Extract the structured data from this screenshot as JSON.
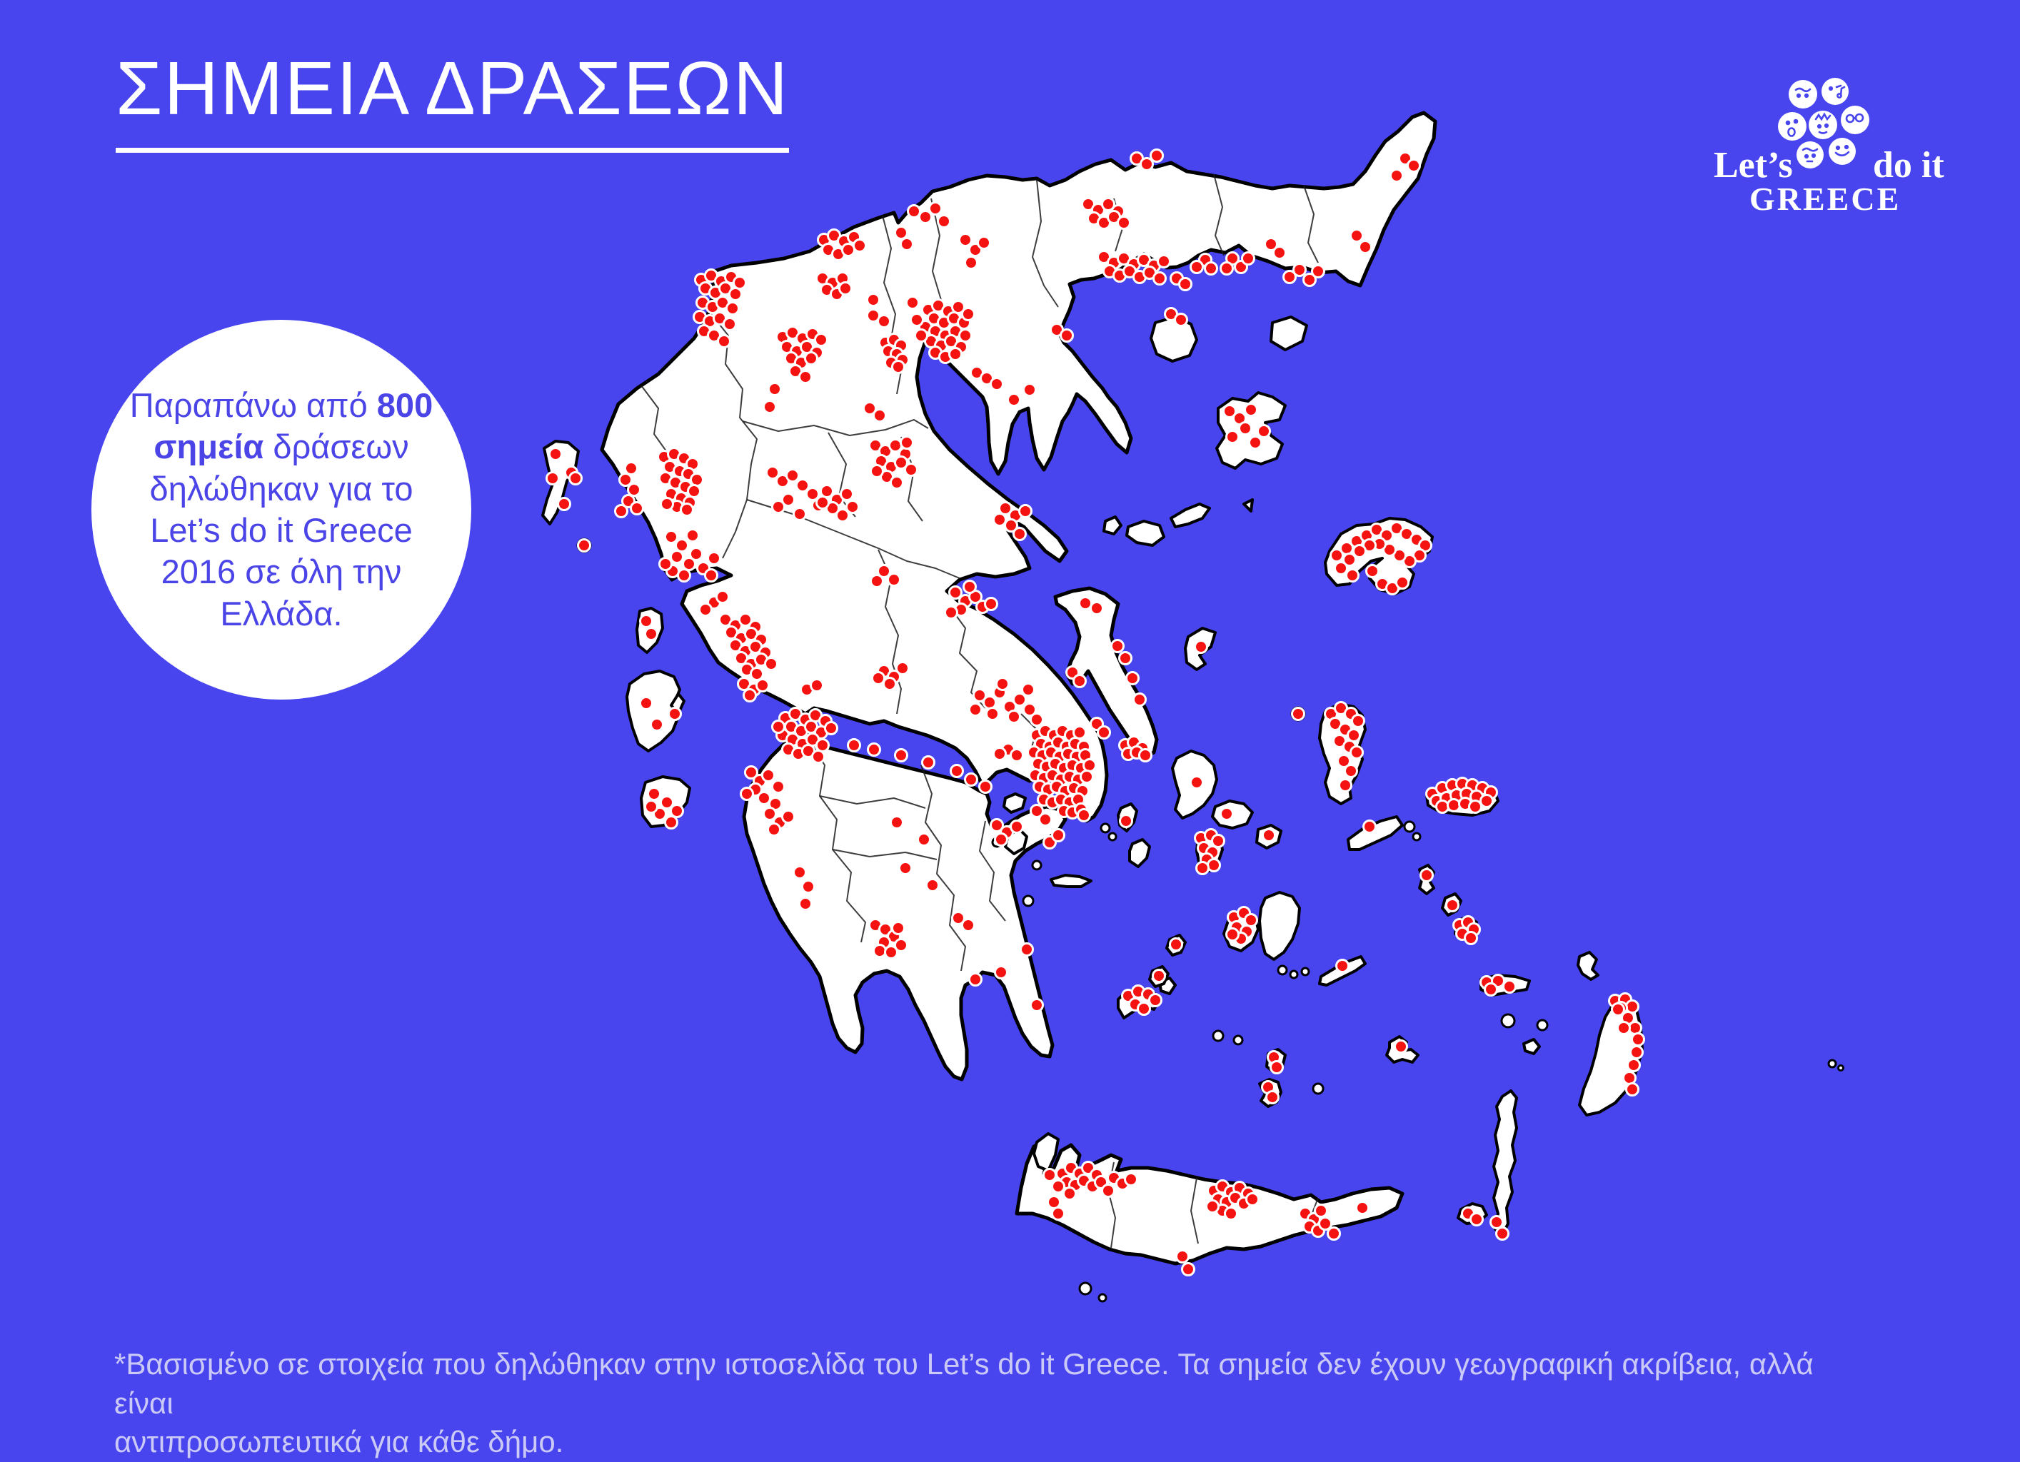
{
  "title": {
    "text": "ΣΗΜΕΙΑ ΔΡΑΣΕΩΝ"
  },
  "info_circle": {
    "prefix": "Παραπάνω από ",
    "highlight": "800 σημεία",
    "suffix": " δράσεων δηλώθηκαν για το Let’s do it Greece 2016 σε όλη την Ελλάδα."
  },
  "logo": {
    "left_word": "Let’s",
    "right_word": "do it",
    "bottom_word": "GREECE",
    "icon": "smiley-faces-cluster-icon"
  },
  "footnote": {
    "line1": "*Βασισμένο σε στοιχεία που δηλώθηκαν στην ιστοσελίδα του Let’s do it Greece. Τα σημεία δεν έχουν γεωγραφική ακρίβεια, αλλά είναι",
    "line2": "αντιπροσωπευτικά για κάθε δήμο."
  },
  "colors": {
    "background": "#4845EF",
    "land": "#FFFFFF",
    "outline": "#000000",
    "dot": "#F41311",
    "dot_halo": "#FFFFFF",
    "title_text": "#FFFFFF",
    "circle_text": "#4B45E8",
    "footnote_text": "#CBC9F6"
  },
  "map": {
    "dot_radius": 8.5,
    "dot_color": "#F41311",
    "dots": [
      1968,
      222,
      1980,
      232,
      1956,
      246,
      1900,
      330,
      1912,
      346,
      1806,
      388,
      1820,
      378,
      1834,
      392,
      1846,
      380,
      1780,
      342,
      1792,
      354,
      1726,
      362,
      1738,
      374,
      1748,
      362,
      1718,
      376,
      1688,
      364,
      1696,
      376,
      1676,
      374,
      1648,
      390,
      1660,
      398,
      1640,
      440,
      1654,
      448,
      1592,
      222,
      1606,
      230,
      1620,
      218,
      1524,
      286,
      1538,
      294,
      1552,
      286,
      1566,
      296,
      1532,
      306,
      1546,
      312,
      1560,
      304,
      1574,
      312,
      1546,
      360,
      1560,
      368,
      1574,
      362,
      1588,
      370,
      1602,
      364,
      1616,
      372,
      1630,
      366,
      1554,
      380,
      1568,
      386,
      1582,
      380,
      1596,
      388,
      1610,
      382,
      1624,
      390,
      1280,
      296,
      1296,
      304,
      1310,
      292,
      1322,
      310,
      1352,
      336,
      1366,
      350,
      1378,
      340,
      1360,
      368,
      1262,
      326,
      1270,
      342,
      1300,
      434,
      1314,
      428,
      1328,
      436,
      1342,
      430,
      1308,
      446,
      1322,
      452,
      1336,
      446,
      1350,
      452,
      1296,
      458,
      1310,
      464,
      1324,
      470,
      1338,
      464,
      1352,
      470,
      1304,
      478,
      1318,
      484,
      1332,
      478,
      1346,
      486,
      1310,
      494,
      1324,
      500,
      1338,
      496,
      1290,
      470,
      1356,
      440,
      1284,
      448,
      1278,
      424,
      1480,
      462,
      1494,
      470,
      1368,
      522,
      1382,
      530,
      1396,
      538,
      1442,
      546,
      1420,
      560,
      1154,
      336,
      1168,
      330,
      1182,
      338,
      1196,
      332,
      1204,
      344,
      1160,
      350,
      1174,
      356,
      1188,
      350,
      1152,
      390,
      1166,
      396,
      1180,
      390,
      1158,
      406,
      1172,
      412,
      1184,
      404,
      1223,
      420,
      1223,
      442,
      1238,
      450,
      1240,
      480,
      1252,
      476,
      1262,
      484,
      1244,
      492,
      1256,
      496,
      1264,
      504,
      1248,
      508,
      1258,
      514,
      982,
      392,
      996,
      386,
      1010,
      394,
      1024,
      388,
      1036,
      396,
      988,
      404,
      1002,
      410,
      1016,
      404,
      1030,
      412,
      984,
      424,
      998,
      430,
      1012,
      424,
      1026,
      432,
      980,
      444,
      994,
      450,
      1008,
      446,
      1022,
      454,
      986,
      464,
      1000,
      470,
      1014,
      478,
      1096,
      472,
      1110,
      466,
      1124,
      474,
      1138,
      468,
      1150,
      476,
      1102,
      486,
      1116,
      492,
      1130,
      486,
      1144,
      494,
      1108,
      502,
      1122,
      508,
      1136,
      502,
      1114,
      520,
      1128,
      528,
      1085,
      545,
      1078,
      570,
      930,
      640,
      944,
      636,
      958,
      642,
      970,
      650,
      938,
      654,
      952,
      660,
      964,
      664,
      976,
      672,
      932,
      670,
      946,
      676,
      960,
      682,
      972,
      688,
      940,
      692,
      954,
      698,
      966,
      704,
      948,
      710,
      934,
      706,
      962,
      714,
      876,
      672,
      888,
      686,
      880,
      702,
      892,
      712,
      870,
      716,
      884,
      656,
      778,
      636,
      800,
      662,
      806,
      670,
      774,
      670,
      790,
      706,
      818,
      764,
      905,
      870,
      912,
      888,
      905,
      985,
      920,
      1015,
      945,
      1000,
      916,
      1112,
      934,
      1124,
      948,
      1136,
      924,
      1140,
      940,
      1152,
      912,
      1130,
      940,
      752,
      955,
      764,
      948,
      780,
      965,
      790,
      975,
      776,
      942,
      800,
      958,
      806,
      985,
      796,
      996,
      806,
      1000,
      782,
      932,
      790,
      970,
      750,
      1082,
      662,
      1096,
      674,
      1110,
      666,
      1124,
      680,
      1138,
      692,
      1104,
      700,
      1090,
      710,
      1146,
      708,
      1120,
      720,
      1226,
      624,
      1240,
      632,
      1254,
      624,
      1268,
      636,
      1234,
      646,
      1248,
      654,
      1262,
      648,
      1276,
      658,
      1242,
      668,
      1256,
      676,
      1228,
      660,
      1270,
      620,
      1218,
      572,
      1232,
      582,
      1158,
      688,
      1172,
      700,
      1186,
      692,
      1166,
      712,
      1180,
      722,
      1152,
      704,
      1194,
      710,
      1408,
      712,
      1422,
      722,
      1436,
      716,
      1416,
      736,
      1400,
      728,
      1428,
      748,
      1338,
      830,
      1352,
      842,
      1366,
      836,
      1346,
      854,
      1376,
      850,
      1332,
      858,
      1388,
      846,
      1358,
      822,
      1238,
      800,
      1252,
      812,
      1228,
      814,
      1016,
      868,
      1030,
      876,
      1044,
      868,
      1058,
      878,
      1024,
      886,
      1038,
      894,
      1052,
      888,
      1066,
      896,
      1030,
      904,
      1044,
      912,
      1058,
      906,
      1072,
      914,
      1038,
      922,
      1052,
      930,
      1066,
      924,
      1080,
      930,
      1046,
      938,
      1060,
      944,
      1042,
      958,
      1056,
      966,
      1068,
      960,
      1050,
      974,
      1000,
      844,
      1012,
      836,
      988,
      854,
      1130,
      966,
      1144,
      960,
      1238,
      940,
      1252,
      948,
      1264,
      936,
      1246,
      958,
      1230,
      950,
      1372,
      974,
      1386,
      984,
      1400,
      970,
      1414,
      990,
      1428,
      980,
      1442,
      994,
      1390,
      1000,
      1420,
      1004,
      1440,
      966,
      1366,
      994,
      1452,
      1008,
      1404,
      958,
      1520,
      845,
      1536,
      852,
      1502,
      942,
      1512,
      954,
      1565,
      905,
      1576,
      922,
      1596,
      980,
      1586,
      950,
      1576,
      1044,
      1588,
      1040,
      1600,
      1048,
      1580,
      1056,
      1592,
      1054,
      1604,
      1058,
      1682,
      906,
      1452,
      1030,
      1464,
      1024,
      1476,
      1030,
      1488,
      1024,
      1500,
      1030,
      1512,
      1026,
      1458,
      1042,
      1470,
      1046,
      1482,
      1040,
      1494,
      1046,
      1506,
      1042,
      1518,
      1046,
      1448,
      1054,
      1460,
      1058,
      1472,
      1054,
      1484,
      1060,
      1496,
      1056,
      1508,
      1060,
      1520,
      1058,
      1454,
      1070,
      1466,
      1074,
      1478,
      1070,
      1490,
      1076,
      1502,
      1072,
      1514,
      1076,
      1526,
      1072,
      1450,
      1086,
      1462,
      1090,
      1474,
      1086,
      1486,
      1092,
      1498,
      1088,
      1510,
      1092,
      1522,
      1088,
      1456,
      1102,
      1468,
      1106,
      1480,
      1102,
      1492,
      1108,
      1504,
      1104,
      1516,
      1108,
      1462,
      1120,
      1474,
      1124,
      1486,
      1120,
      1498,
      1124,
      1510,
      1120,
      1490,
      1136,
      1502,
      1138,
      1514,
      1134,
      1518,
      1142,
      1536,
      1014,
      1546,
      1026,
      1412,
      1050,
      1424,
      1058,
      1400,
      1056,
      1577,
      1150,
      1360,
      1092,
      1340,
      1080,
      1300,
      1068,
      1262,
      1058,
      1224,
      1050,
      1196,
      1044,
      1380,
      1102,
      1100,
      1006,
      1114,
      1000,
      1128,
      1008,
      1142,
      1002,
      1156,
      1010,
      1108,
      1018,
      1122,
      1024,
      1136,
      1018,
      1150,
      1026,
      1164,
      1020,
      1096,
      1030,
      1110,
      1036,
      1124,
      1042,
      1138,
      1036,
      1152,
      1044,
      1104,
      1050,
      1118,
      1056,
      1132,
      1052,
      1146,
      1060,
      1090,
      1018,
      1052,
      1082,
      1064,
      1094,
      1076,
      1086,
      1058,
      1106,
      1070,
      1118,
      1046,
      1112,
      1086,
      1126,
      1090,
      1102,
      1078,
      1140,
      1092,
      1152,
      1104,
      1144,
      1084,
      1162,
      1120,
      1222,
      1132,
      1242,
      1128,
      1266,
      1226,
      1296,
      1240,
      1302,
      1252,
      1312,
      1238,
      1320,
      1262,
      1324,
      1232,
      1332,
      1248,
      1334,
      1258,
      1300,
      1294,
      1176,
      1268,
      1216,
      1306,
      1240,
      1256,
      1152,
      1396,
      1156,
      1410,
      1166,
      1424,
      1158,
      1402,
      1176,
      1452,
      1136,
      1464,
      1148,
      1470,
      1180,
      1482,
      1170,
      1342,
      1286,
      1356,
      1296,
      1366,
      1372,
      1402,
      1362,
      1452,
      1408,
      1438,
      1330,
      1722,
      576,
      1736,
      586,
      1752,
      574,
      1744,
      600,
      1726,
      612,
      1758,
      620,
      1770,
      604,
      1872,
      778,
      1886,
      768,
      1900,
      758,
      1914,
      750,
      1928,
      742,
      1942,
      750,
      1956,
      740,
      1970,
      748,
      1984,
      756,
      1996,
      764,
      1988,
      778,
      1974,
      786,
      1960,
      778,
      1946,
      770,
      1932,
      762,
      1918,
      764,
      1904,
      772,
      1890,
      784,
      1878,
      796,
      1894,
      806,
      1936,
      818,
      1950,
      824,
      1964,
      816,
      1922,
      800,
      1864,
      1000,
      1878,
      992,
      1892,
      1000,
      1902,
      1010,
      1870,
      1014,
      1884,
      1022,
      1896,
      1030,
      1876,
      1038,
      1890,
      1046,
      1900,
      1054,
      1882,
      1066,
      1892,
      1080,
      1884,
      1100,
      1818,
      1000,
      2006,
      1112,
      2020,
      1104,
      2034,
      1100,
      2048,
      1098,
      2062,
      1100,
      2076,
      1104,
      2088,
      1110,
      2012,
      1122,
      2026,
      1118,
      2040,
      1114,
      2054,
      1112,
      2068,
      1116,
      2082,
      1122,
      2020,
      1130,
      2036,
      1128,
      2052,
      1126,
      2066,
      1130,
      1918,
      1158,
      1676,
      1096,
      1718,
      1140,
      1777,
      1170,
      1682,
      1174,
      1696,
      1170,
      1706,
      1178,
      1686,
      1188,
      1698,
      1194,
      1690,
      1204,
      1700,
      1212,
      1684,
      1216,
      1728,
      1285,
      1742,
      1279,
      1752,
      1289,
      1732,
      1299,
      1746,
      1305,
      1738,
      1315,
      1726,
      1309,
      1580,
      1395,
      1594,
      1389,
      1608,
      1393,
      1618,
      1401,
      1590,
      1407,
      1602,
      1413,
      1647,
      1323,
      1623,
      1367,
      1784,
      1481,
      1788,
      1495,
      1776,
      1523,
      1782,
      1537,
      1880,
      1353,
      1998,
      1226,
      2034,
      1268,
      2044,
      1296,
      2056,
      1292,
      2064,
      1302,
      2048,
      1308,
      2060,
      1314,
      2082,
      1376,
      2098,
      1374,
      2114,
      1382,
      2088,
      1386,
      1962,
      1466,
      2262,
      1402,
      2276,
      1400,
      2286,
      1410,
      2270,
      1412,
      2280,
      1426,
      2290,
      1440,
      2294,
      1456,
      2292,
      1474,
      2288,
      1492,
      2282,
      1510,
      2286,
      1526,
      2274,
      1440,
      2266,
      1414,
      2096,
      1712,
      2104,
      1728,
      2056,
      1700,
      2068,
      1708,
      1488,
      1644,
      1500,
      1636,
      1512,
      1644,
      1524,
      1636,
      1536,
      1646,
      1494,
      1656,
      1506,
      1660,
      1518,
      1654,
      1530,
      1662,
      1542,
      1656,
      1482,
      1662,
      1470,
      1646,
      1552,
      1668,
      1498,
      1672,
      1560,
      1650,
      1572,
      1658,
      1584,
      1652,
      1476,
      1684,
      1482,
      1700,
      1656,
      1760,
      1664,
      1778,
      1700,
      1668,
      1712,
      1662,
      1724,
      1670,
      1736,
      1664,
      1748,
      1672,
      1706,
      1680,
      1718,
      1684,
      1730,
      1678,
      1742,
      1686,
      1754,
      1680,
      1712,
      1696,
      1724,
      1700,
      1698,
      1690,
      1828,
      1700,
      1840,
      1708,
      1850,
      1696,
      1834,
      1718,
      1846,
      1724,
      1856,
      1714,
      1908,
      1692,
      1868,
      1728
    ]
  }
}
